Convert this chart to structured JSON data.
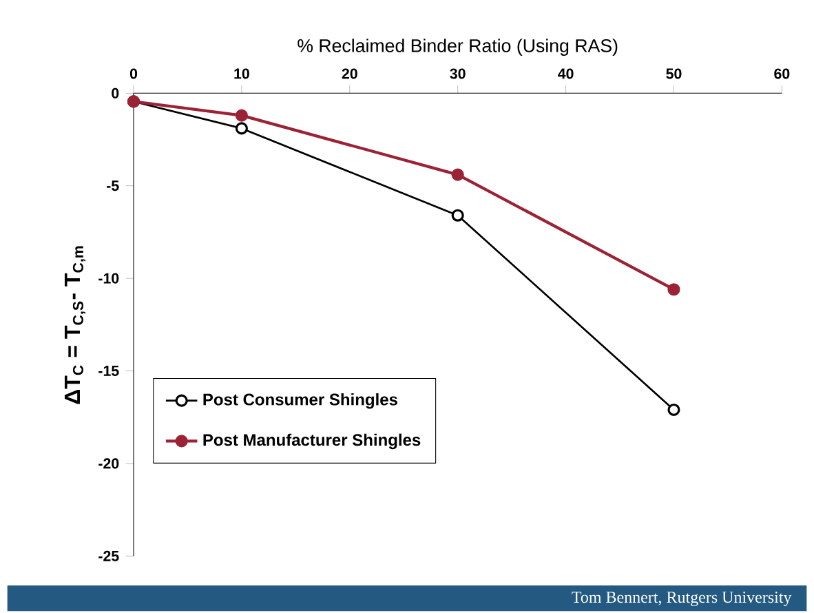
{
  "chart_data": {
    "type": "line",
    "xlabel": "% Reclaimed Binder Ratio (Using RAS)",
    "ylabel": "ΔT$_{C}$ = T$_{C,S}$- T$_{C,m}$",
    "x": [
      0,
      10,
      30,
      50
    ],
    "series": [
      {
        "name": "Post Consumer Shingles",
        "color": "#000000",
        "values": [
          -0.45,
          -1.9,
          -6.6,
          -17.1
        ]
      },
      {
        "name": "Post Manufacturer Shingles",
        "color": "#9b2335",
        "values": [
          -0.45,
          -1.2,
          -4.4,
          -10.6
        ]
      }
    ],
    "xlim": [
      0,
      60
    ],
    "xticks": [
      0,
      10,
      20,
      30,
      40,
      50,
      60
    ],
    "ylim": [
      -25,
      0
    ],
    "yticks": [
      -25,
      -20,
      -15,
      -10,
      -5,
      0
    ],
    "marker": "circle",
    "legend": "bottom left",
    "grid": false,
    "annotations": [
      "Tom Bennert, Rutgers University"
    ]
  }
}
